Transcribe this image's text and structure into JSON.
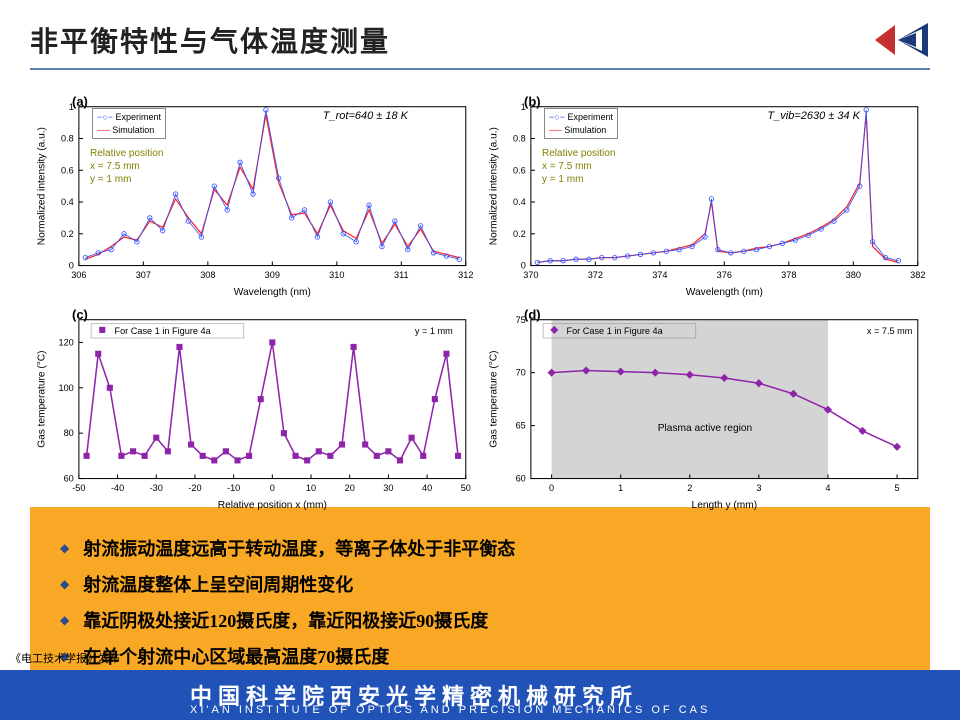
{
  "title": "非平衡特性与气体温度测量",
  "footer_cn": "中国科学院西安光学精密机械研究所",
  "footer_en": "XI'AN INSTITUTE OF OPTICS AND PRECISION MECHANICS OF CAS",
  "footer_tag": "《电工技术学报》发布",
  "logo_colors": {
    "red": "#c53030",
    "blue": "#1a3a7a"
  },
  "divider_color": "#5a7fb0",
  "bullet_bg": "#f9a825",
  "bullet_icon_color": "#2a4d8f",
  "footer_bg": "#2052b8",
  "bullets": [
    "射流振动温度远高于转动温度，等离子体处于非平衡态",
    "射流温度整体上呈空间周期性变化",
    "靠近阴极处接近120摄氏度，靠近阳极接近90摄氏度",
    "在单个射流中心区域最高温度70摄氏度"
  ],
  "charts": {
    "a": {
      "panel": "(a)",
      "type": "spectrum",
      "xlabel": "Wavelength (nm)",
      "ylabel": "Normalized intensity (a.u.)",
      "xlim": [
        306,
        312
      ],
      "xticks": [
        306,
        307,
        308,
        309,
        310,
        311,
        312
      ],
      "ylim": [
        0,
        1.0
      ],
      "yticks": [
        0,
        0.2,
        0.4,
        0.6,
        0.8,
        1.0
      ],
      "temp_label": "T_rot=640 ± 18 K",
      "rel_pos": "Relative position\nx = 7.5 mm\ny = 1 mm",
      "legend": [
        "Experiment",
        "Simulation"
      ],
      "exp_color": "#3050ff",
      "exp_marker": "circle",
      "sim_color": "#ff2020",
      "exp_x": [
        306.1,
        306.3,
        306.5,
        306.7,
        306.9,
        307.1,
        307.3,
        307.5,
        307.7,
        307.9,
        308.1,
        308.3,
        308.5,
        308.7,
        308.9,
        309.1,
        309.3,
        309.5,
        309.7,
        309.9,
        310.1,
        310.3,
        310.5,
        310.7,
        310.9,
        311.1,
        311.3,
        311.5,
        311.7,
        311.9
      ],
      "exp_y": [
        0.05,
        0.08,
        0.1,
        0.2,
        0.15,
        0.3,
        0.22,
        0.45,
        0.28,
        0.18,
        0.5,
        0.35,
        0.65,
        0.45,
        0.98,
        0.55,
        0.3,
        0.35,
        0.18,
        0.4,
        0.2,
        0.15,
        0.38,
        0.12,
        0.28,
        0.1,
        0.25,
        0.08,
        0.06,
        0.04
      ],
      "sim_y": [
        0.04,
        0.07,
        0.12,
        0.18,
        0.16,
        0.28,
        0.24,
        0.42,
        0.3,
        0.2,
        0.48,
        0.38,
        0.62,
        0.48,
        0.95,
        0.52,
        0.32,
        0.33,
        0.2,
        0.38,
        0.22,
        0.17,
        0.35,
        0.14,
        0.26,
        0.12,
        0.23,
        0.09,
        0.07,
        0.05
      ]
    },
    "b": {
      "panel": "(b)",
      "type": "spectrum",
      "xlabel": "Wavelength (nm)",
      "ylabel": "Normalized intensity (a.u.)",
      "xlim": [
        370,
        382
      ],
      "xticks": [
        370,
        372,
        374,
        376,
        378,
        380,
        382
      ],
      "ylim": [
        0,
        1.0
      ],
      "yticks": [
        0,
        0.2,
        0.4,
        0.6,
        0.8,
        1.0
      ],
      "temp_label": "T_vib=2630 ± 34 K",
      "rel_pos": "Relative position\nx = 7.5 mm\ny = 1 mm",
      "legend": [
        "Experiment",
        "Simulation"
      ],
      "exp_color": "#3050ff",
      "exp_marker": "circle",
      "sim_color": "#ff2020",
      "exp_x": [
        370.2,
        370.6,
        371.0,
        371.4,
        371.8,
        372.2,
        372.6,
        373.0,
        373.4,
        373.8,
        374.2,
        374.6,
        375.0,
        375.4,
        375.6,
        375.8,
        376.2,
        376.6,
        377.0,
        377.4,
        377.8,
        378.2,
        378.6,
        379.0,
        379.4,
        379.8,
        380.2,
        380.4,
        380.6,
        381.0,
        381.4
      ],
      "exp_y": [
        0.02,
        0.03,
        0.03,
        0.04,
        0.04,
        0.05,
        0.05,
        0.06,
        0.07,
        0.08,
        0.09,
        0.1,
        0.12,
        0.18,
        0.42,
        0.1,
        0.08,
        0.09,
        0.1,
        0.12,
        0.14,
        0.16,
        0.19,
        0.23,
        0.28,
        0.35,
        0.5,
        0.98,
        0.15,
        0.05,
        0.03
      ],
      "sim_y": [
        0.02,
        0.03,
        0.03,
        0.04,
        0.04,
        0.05,
        0.05,
        0.06,
        0.07,
        0.08,
        0.09,
        0.11,
        0.13,
        0.2,
        0.4,
        0.09,
        0.08,
        0.09,
        0.11,
        0.12,
        0.14,
        0.17,
        0.2,
        0.24,
        0.29,
        0.37,
        0.52,
        0.95,
        0.12,
        0.04,
        0.02
      ]
    },
    "c": {
      "panel": "(c)",
      "type": "line-marker",
      "xlabel": "Relative position x (mm)",
      "ylabel": "Gas temperature (°C)",
      "xlim": [
        -50,
        50
      ],
      "xticks": [
        -50,
        -40,
        -30,
        -20,
        -10,
        0,
        10,
        20,
        30,
        40,
        50
      ],
      "ylim": [
        60,
        130
      ],
      "yticks": [
        60,
        80,
        100,
        120
      ],
      "series_label": "For Case 1 in Figure 4a",
      "annotation": "y = 1 mm",
      "color": "#8e24aa",
      "marker": "square",
      "x": [
        -48,
        -45,
        -42,
        -39,
        -36,
        -33,
        -30,
        -27,
        -24,
        -21,
        -18,
        -15,
        -12,
        -9,
        -6,
        -3,
        0,
        3,
        6,
        9,
        12,
        15,
        18,
        21,
        24,
        27,
        30,
        33,
        36,
        39,
        42,
        45,
        48
      ],
      "y": [
        70,
        115,
        100,
        70,
        72,
        70,
        78,
        72,
        118,
        75,
        70,
        68,
        72,
        68,
        70,
        95,
        120,
        80,
        70,
        68,
        72,
        70,
        75,
        118,
        75,
        70,
        72,
        68,
        78,
        70,
        95,
        115,
        70
      ]
    },
    "d": {
      "panel": "(d)",
      "type": "line-marker",
      "xlabel": "Length y (mm)",
      "ylabel": "Gas temperature (°C)",
      "xlim": [
        -0.3,
        5.3
      ],
      "xticks": [
        0,
        1,
        2,
        3,
        4,
        5
      ],
      "ylim": [
        60,
        75
      ],
      "yticks": [
        60,
        65,
        70,
        75
      ],
      "series_label": "For Case 1 in Figure 4a",
      "annotation": "x = 7.5 mm",
      "region_label": "Plasma active region",
      "region_x": [
        0,
        4
      ],
      "region_color": "#b8b8b8",
      "color": "#8e24aa",
      "marker": "diamond",
      "x": [
        0,
        0.5,
        1.0,
        1.5,
        2.0,
        2.5,
        3.0,
        3.5,
        4.0,
        4.5,
        5.0
      ],
      "y": [
        70,
        70.2,
        70.1,
        70,
        69.8,
        69.5,
        69,
        68,
        66.5,
        64.5,
        63
      ]
    }
  }
}
